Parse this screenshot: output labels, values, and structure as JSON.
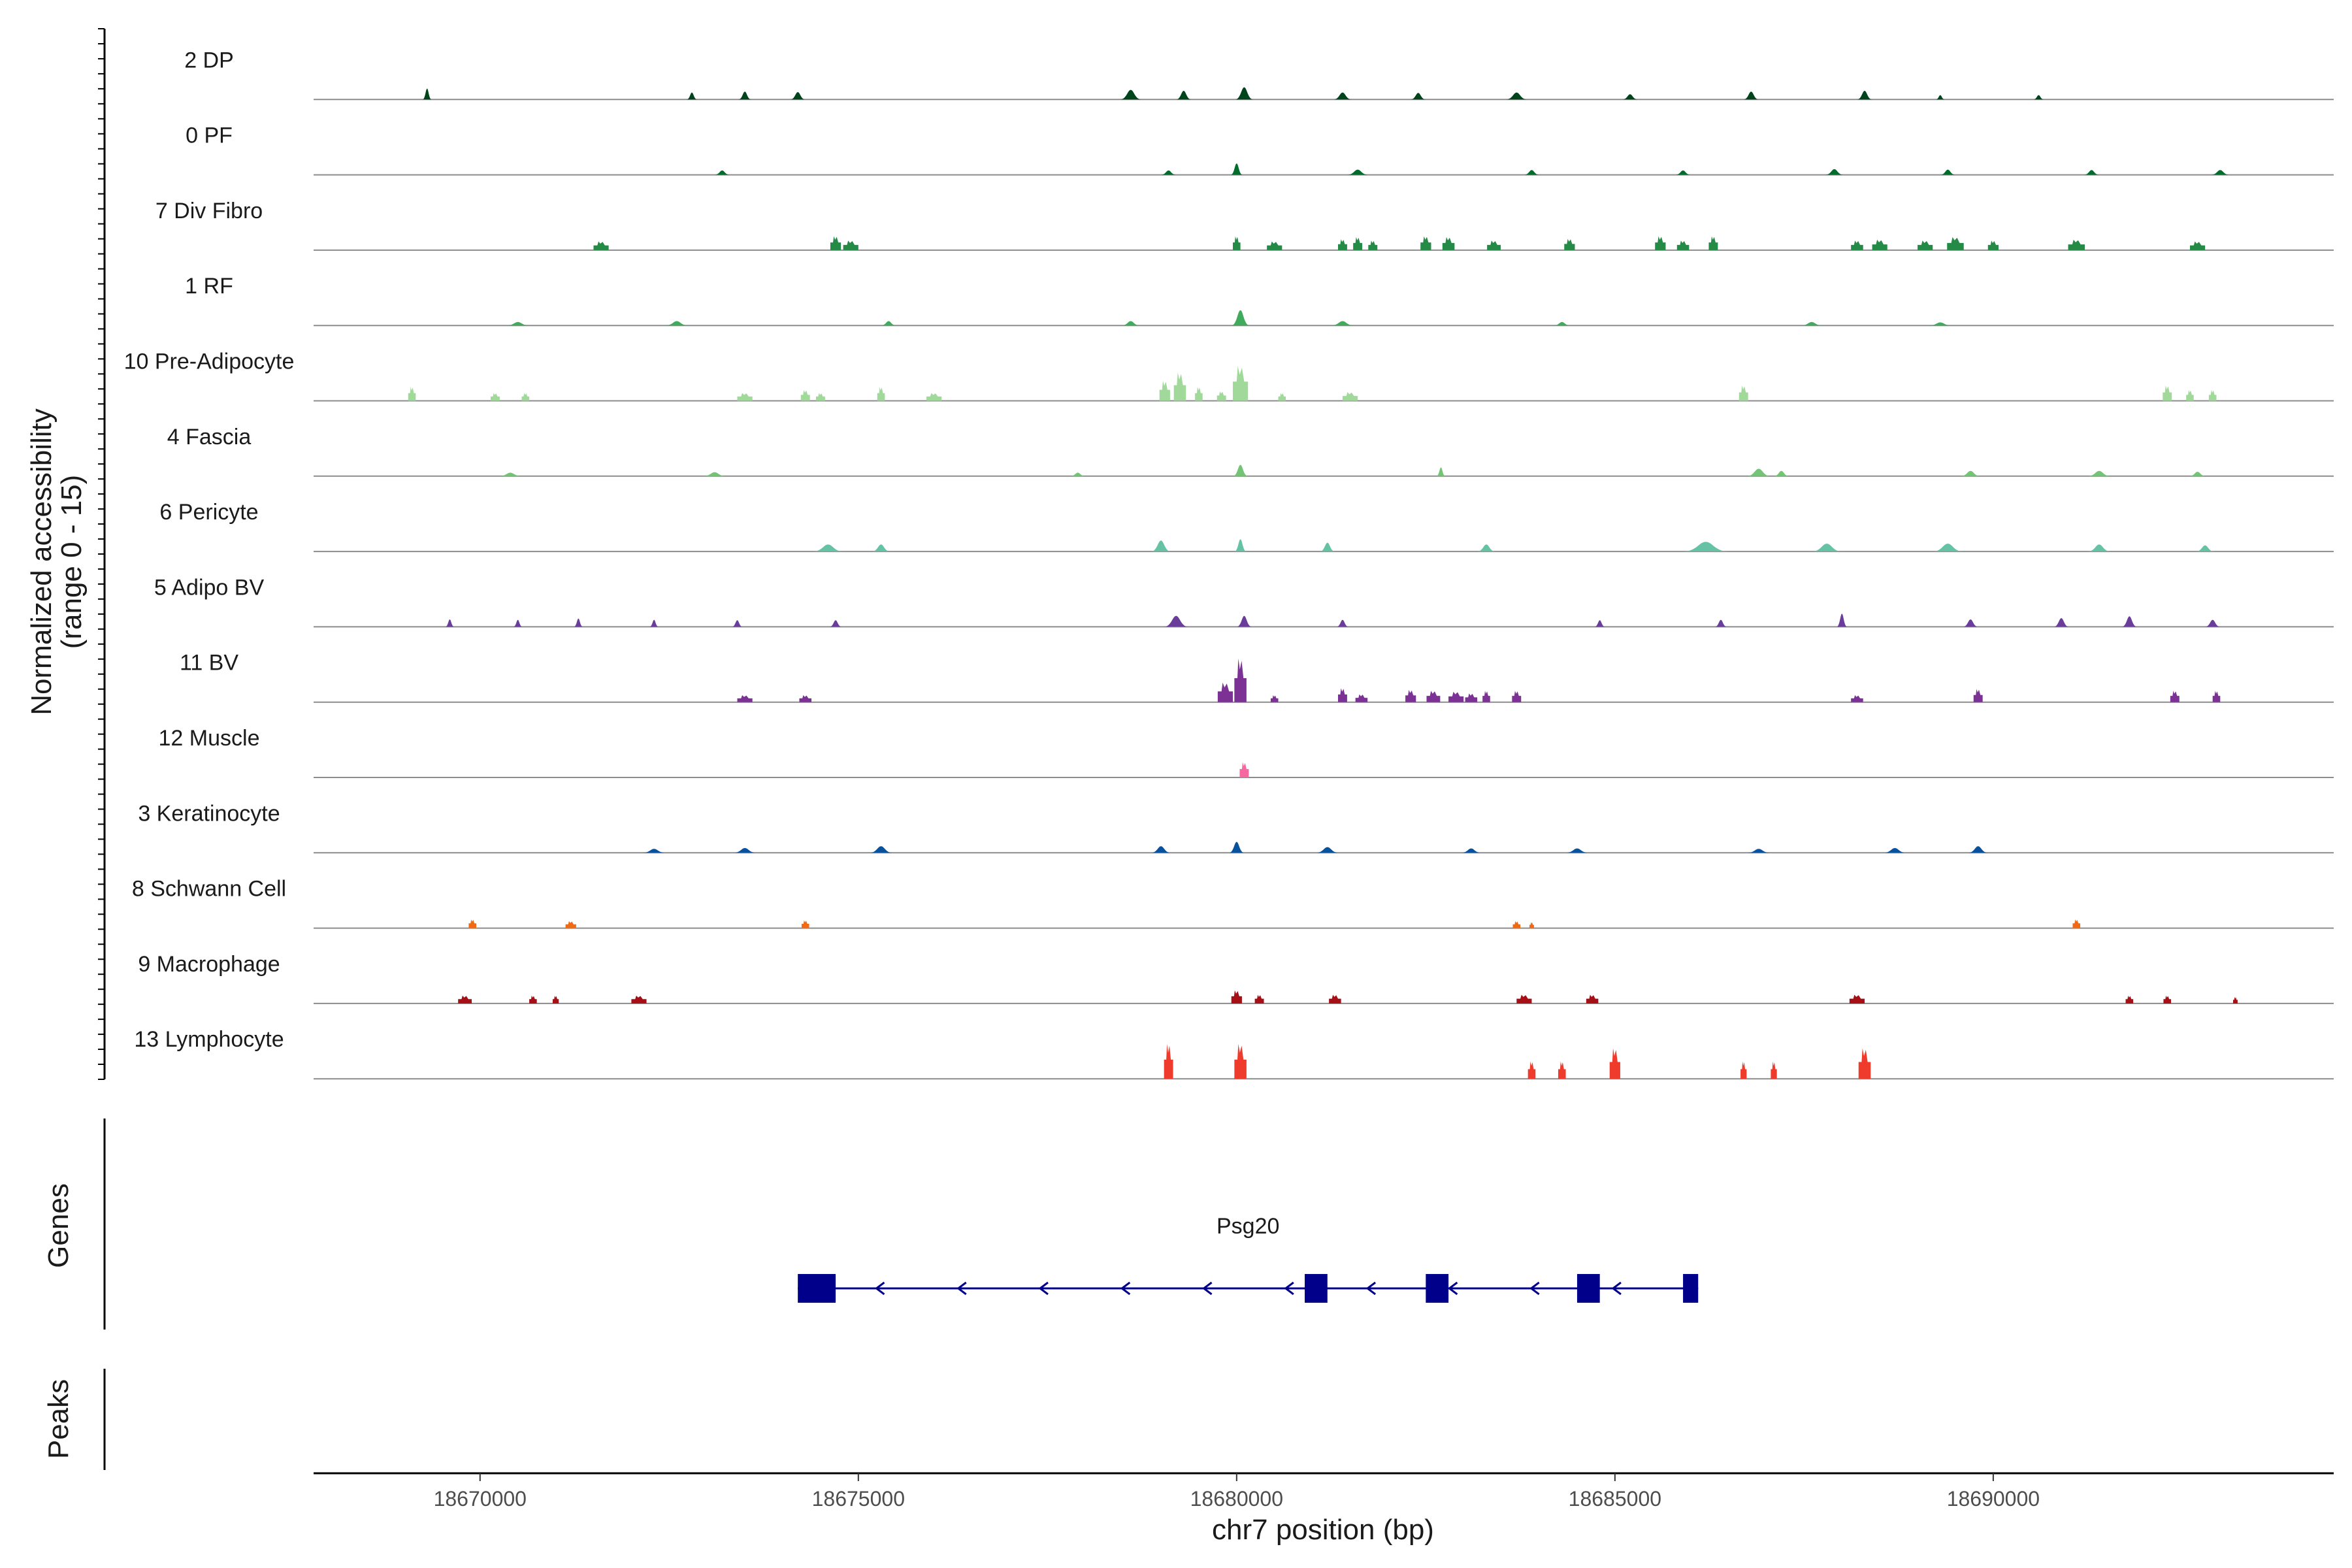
{
  "chart_data": {
    "type": "area",
    "title": "",
    "xlabel": "chr7 position (bp)",
    "ylabel": [
      "Normalized accessibility",
      "(range 0 - 15)"
    ],
    "ylim": [
      0,
      15
    ],
    "xlim": [
      18667800,
      18694500
    ],
    "x_ticks": [
      18670000,
      18675000,
      18680000,
      18685000,
      18690000
    ],
    "x_tick_labels": [
      "18670000",
      "18675000",
      "18680000",
      "18685000",
      "18690000"
    ],
    "panel_labels": [
      "Genes",
      "Peaks"
    ],
    "tracks": [
      {
        "name": "2 DP",
        "color": "#00441b",
        "type": "smooth",
        "peaks": [
          [
            18669300,
            2.5,
            120
          ],
          [
            18672800,
            1.6,
            140
          ],
          [
            18673500,
            1.8,
            170
          ],
          [
            18674200,
            1.7,
            200
          ],
          [
            18678600,
            2.2,
            280
          ],
          [
            18679300,
            2,
            200
          ],
          [
            18680100,
            2.8,
            240
          ],
          [
            18681400,
            1.6,
            240
          ],
          [
            18682400,
            1.5,
            200
          ],
          [
            18683700,
            1.6,
            280
          ],
          [
            18685200,
            1.2,
            200
          ],
          [
            18686800,
            1.8,
            200
          ],
          [
            18688300,
            2,
            200
          ],
          [
            18689300,
            1,
            120
          ],
          [
            18690600,
            1,
            140
          ]
        ]
      },
      {
        "name": "0 PF",
        "color": "#006d2c",
        "type": "smooth",
        "peaks": [
          [
            18673200,
            1,
            200
          ],
          [
            18679100,
            1,
            200
          ],
          [
            18680000,
            2.6,
            160
          ],
          [
            18681600,
            1.2,
            280
          ],
          [
            18683900,
            1.1,
            200
          ],
          [
            18685900,
            1,
            200
          ],
          [
            18687900,
            1.3,
            240
          ],
          [
            18689400,
            1.2,
            200
          ],
          [
            18691300,
            1.1,
            200
          ],
          [
            18693000,
            1.1,
            240
          ]
        ]
      },
      {
        "name": "7 Div Fibro",
        "color": "#238b45",
        "type": "blocks",
        "peaks": [
          [
            18671600,
            2,
            200
          ],
          [
            18674700,
            3.2,
            140
          ],
          [
            18674900,
            2.2,
            200
          ],
          [
            18680000,
            3.2,
            100
          ],
          [
            18680500,
            2,
            200
          ],
          [
            18681400,
            2.5,
            120
          ],
          [
            18681600,
            3,
            120
          ],
          [
            18681800,
            2.2,
            120
          ],
          [
            18682500,
            3.2,
            140
          ],
          [
            18682800,
            3,
            160
          ],
          [
            18683400,
            2.2,
            180
          ],
          [
            18684400,
            2.6,
            140
          ],
          [
            18685600,
            3.2,
            140
          ],
          [
            18685900,
            2.2,
            160
          ],
          [
            18686300,
            3.2,
            120
          ],
          [
            18688200,
            2.2,
            160
          ],
          [
            18688500,
            2.4,
            200
          ],
          [
            18689100,
            2.2,
            200
          ],
          [
            18689500,
            3,
            220
          ],
          [
            18690000,
            2.2,
            140
          ],
          [
            18691100,
            2.4,
            220
          ],
          [
            18692700,
            2,
            200
          ]
        ]
      },
      {
        "name": "1 RF",
        "color": "#41ab5d",
        "type": "smooth",
        "peaks": [
          [
            18670500,
            0.8,
            300
          ],
          [
            18672600,
            1,
            300
          ],
          [
            18675400,
            1,
            200
          ],
          [
            18678600,
            1,
            240
          ],
          [
            18680050,
            3.5,
            240
          ],
          [
            18681400,
            1,
            300
          ],
          [
            18684300,
            0.8,
            220
          ],
          [
            18687600,
            0.8,
            280
          ],
          [
            18689300,
            0.7,
            300
          ]
        ]
      },
      {
        "name": "10 Pre-Adipocyte",
        "color": "#a1d99b",
        "type": "blocks",
        "peaks": [
          [
            18669100,
            3.2,
            100
          ],
          [
            18670200,
            1.8,
            120
          ],
          [
            18670600,
            1.8,
            100
          ],
          [
            18673500,
            1.8,
            200
          ],
          [
            18674300,
            2.5,
            120
          ],
          [
            18674500,
            1.8,
            120
          ],
          [
            18675300,
            3.2,
            100
          ],
          [
            18676000,
            1.8,
            200
          ],
          [
            18679050,
            4.6,
            140
          ],
          [
            18679250,
            6.5,
            160
          ],
          [
            18679500,
            3.2,
            100
          ],
          [
            18679800,
            2.2,
            120
          ],
          [
            18680050,
            8,
            200
          ],
          [
            18680600,
            1.8,
            100
          ],
          [
            18681500,
            2,
            200
          ],
          [
            18686700,
            3.5,
            120
          ],
          [
            18692300,
            3.5,
            120
          ],
          [
            18692600,
            2.5,
            100
          ],
          [
            18692900,
            2.5,
            100
          ]
        ]
      },
      {
        "name": "4 Fascia",
        "color": "#74c476",
        "type": "smooth",
        "peaks": [
          [
            18670400,
            0.8,
            300
          ],
          [
            18673100,
            0.9,
            300
          ],
          [
            18677900,
            0.8,
            200
          ],
          [
            18680050,
            2.6,
            200
          ],
          [
            18682700,
            2,
            120
          ],
          [
            18686900,
            1.7,
            320
          ],
          [
            18687200,
            1.2,
            200
          ],
          [
            18689700,
            1.2,
            260
          ],
          [
            18691400,
            1.2,
            300
          ],
          [
            18692700,
            1,
            220
          ]
        ]
      },
      {
        "name": "6 Pericyte",
        "color": "#66c2a4",
        "type": "smooth",
        "peaks": [
          [
            18674600,
            1.6,
            400
          ],
          [
            18675300,
            1.6,
            240
          ],
          [
            18679000,
            2.5,
            260
          ],
          [
            18680050,
            2.8,
            160
          ],
          [
            18681200,
            2,
            200
          ],
          [
            18683300,
            1.6,
            240
          ],
          [
            18686200,
            2.2,
            600
          ],
          [
            18687800,
            1.8,
            400
          ],
          [
            18689400,
            1.8,
            400
          ],
          [
            18691400,
            1.6,
            300
          ],
          [
            18692800,
            1.4,
            240
          ]
        ]
      },
      {
        "name": "5 Adipo BV",
        "color": "#6a3d9a",
        "type": "smooth",
        "peaks": [
          [
            18669600,
            1.7,
            120
          ],
          [
            18670500,
            1.6,
            120
          ],
          [
            18671300,
            1.9,
            120
          ],
          [
            18672300,
            1.6,
            120
          ],
          [
            18673400,
            1.5,
            140
          ],
          [
            18674700,
            1.5,
            160
          ],
          [
            18679200,
            2.5,
            320
          ],
          [
            18680100,
            2.5,
            200
          ],
          [
            18681400,
            1.6,
            160
          ],
          [
            18684800,
            1.5,
            140
          ],
          [
            18686400,
            1.6,
            160
          ],
          [
            18688000,
            3,
            140
          ],
          [
            18689700,
            1.7,
            200
          ],
          [
            18690900,
            2,
            200
          ],
          [
            18691800,
            2.4,
            200
          ],
          [
            18692900,
            1.6,
            200
          ]
        ]
      },
      {
        "name": "11 BV",
        "color": "#7b3294",
        "type": "blocks",
        "peaks": [
          [
            18673500,
            1.6,
            200
          ],
          [
            18674300,
            1.6,
            160
          ],
          [
            18679850,
            4.5,
            200
          ],
          [
            18680050,
            10,
            160
          ],
          [
            18680500,
            1.6,
            100
          ],
          [
            18681400,
            3.2,
            120
          ],
          [
            18681650,
            1.8,
            160
          ],
          [
            18682300,
            2.8,
            140
          ],
          [
            18682600,
            2.6,
            180
          ],
          [
            18682900,
            2.4,
            200
          ],
          [
            18683100,
            2,
            160
          ],
          [
            18683300,
            2.6,
            100
          ],
          [
            18683700,
            2.6,
            120
          ],
          [
            18688200,
            1.6,
            160
          ],
          [
            18689800,
            3,
            120
          ],
          [
            18692400,
            2.6,
            120
          ],
          [
            18692950,
            2.6,
            100
          ]
        ]
      },
      {
        "name": "12 Muscle",
        "color": "#f768a1",
        "type": "blocks",
        "peaks": [
          [
            18680100,
            3.5,
            120
          ]
        ]
      },
      {
        "name": "3 Keratinocyte",
        "color": "#08519c",
        "type": "smooth",
        "peaks": [
          [
            18672300,
            0.9,
            300
          ],
          [
            18673500,
            1.1,
            300
          ],
          [
            18675300,
            1.5,
            300
          ],
          [
            18679000,
            1.5,
            260
          ],
          [
            18680000,
            2.5,
            200
          ],
          [
            18681200,
            1.3,
            300
          ],
          [
            18683100,
            1,
            260
          ],
          [
            18684500,
            1,
            300
          ],
          [
            18686900,
            0.9,
            300
          ],
          [
            18688700,
            1.1,
            300
          ],
          [
            18689800,
            1.5,
            260
          ]
        ]
      },
      {
        "name": "8 Schwann Cell",
        "color": "#f16913",
        "type": "blocks",
        "peaks": [
          [
            18669900,
            2,
            100
          ],
          [
            18671200,
            1.6,
            140
          ],
          [
            18674300,
            1.8,
            100
          ],
          [
            18683700,
            1.6,
            100
          ],
          [
            18683900,
            1.4,
            60
          ],
          [
            18691100,
            2,
            100
          ]
        ]
      },
      {
        "name": "9 Macrophage",
        "color": "#a50f15",
        "type": "blocks",
        "peaks": [
          [
            18669800,
            1.8,
            180
          ],
          [
            18670700,
            1.8,
            100
          ],
          [
            18671000,
            1.8,
            80
          ],
          [
            18672100,
            1.8,
            200
          ],
          [
            18680000,
            3,
            140
          ],
          [
            18680300,
            2,
            120
          ],
          [
            18681300,
            2,
            160
          ],
          [
            18683800,
            2,
            200
          ],
          [
            18684700,
            2,
            160
          ],
          [
            18688200,
            2,
            200
          ],
          [
            18691800,
            1.8,
            100
          ],
          [
            18692300,
            1.8,
            100
          ],
          [
            18693200,
            1.5,
            60
          ]
        ]
      },
      {
        "name": "13 Lymphocyte",
        "color": "#ef3b2c",
        "type": "blocks",
        "peaks": [
          [
            18679100,
            8,
            120
          ],
          [
            18680050,
            8,
            160
          ],
          [
            18683900,
            4,
            100
          ],
          [
            18684300,
            4,
            100
          ],
          [
            18685000,
            7,
            140
          ],
          [
            18686700,
            4,
            80
          ],
          [
            18687100,
            4,
            80
          ],
          [
            18688300,
            7,
            160
          ]
        ]
      }
    ],
    "gene": {
      "name": "Psg20",
      "color": "#00008b",
      "strand": "-",
      "start": 18674200,
      "end": 18686100,
      "exons": [
        [
          18674200,
          18674700
        ],
        [
          18680900,
          18681200
        ],
        [
          18682500,
          18682800
        ],
        [
          18684500,
          18684800
        ],
        [
          18685900,
          18686100
        ]
      ]
    },
    "peaks_track": []
  }
}
